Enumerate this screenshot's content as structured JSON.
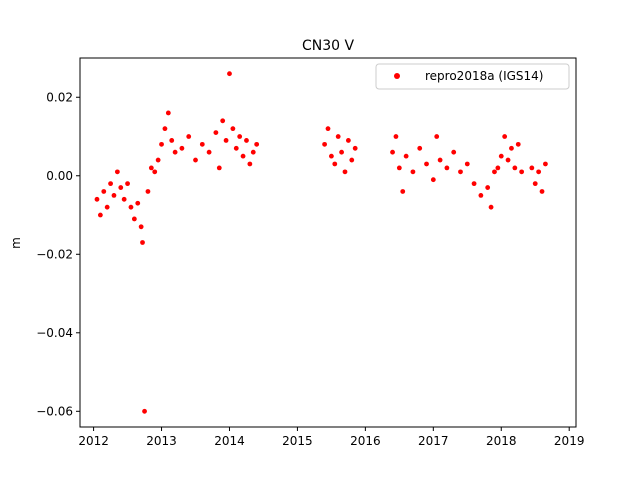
{
  "chart_data": {
    "type": "scatter",
    "title": "CN30 V",
    "xlabel": "",
    "ylabel": "m",
    "xlim": [
      2011.8,
      2019.1
    ],
    "ylim": [
      -0.064,
      0.03
    ],
    "xticks": [
      2012,
      2013,
      2014,
      2015,
      2016,
      2017,
      2018,
      2019
    ],
    "xtick_labels": [
      "2012",
      "2013",
      "2014",
      "2015",
      "2016",
      "2017",
      "2018",
      "2019"
    ],
    "yticks": [
      -0.06,
      -0.04,
      -0.02,
      0.0,
      0.02
    ],
    "ytick_labels": [
      "−0.06",
      "−0.04",
      "−0.02",
      "0.00",
      "0.02"
    ],
    "legend": {
      "location": "upper right",
      "entries": [
        "repro2018a (IGS14)"
      ]
    },
    "colors": {
      "series": "#ff0000"
    },
    "series": [
      {
        "name": "repro2018a (IGS14)",
        "marker": "circle",
        "points": [
          [
            2012.05,
            -0.006
          ],
          [
            2012.1,
            -0.01
          ],
          [
            2012.15,
            -0.004
          ],
          [
            2012.2,
            -0.008
          ],
          [
            2012.25,
            -0.002
          ],
          [
            2012.3,
            -0.005
          ],
          [
            2012.35,
            0.001
          ],
          [
            2012.4,
            -0.003
          ],
          [
            2012.45,
            -0.006
          ],
          [
            2012.5,
            -0.002
          ],
          [
            2012.55,
            -0.008
          ],
          [
            2012.6,
            -0.011
          ],
          [
            2012.65,
            -0.007
          ],
          [
            2012.7,
            -0.013
          ],
          [
            2012.72,
            -0.017
          ],
          [
            2012.75,
            -0.06
          ],
          [
            2012.8,
            -0.004
          ],
          [
            2012.85,
            0.002
          ],
          [
            2012.9,
            0.001
          ],
          [
            2012.95,
            0.004
          ],
          [
            2013.0,
            0.008
          ],
          [
            2013.05,
            0.012
          ],
          [
            2013.1,
            0.016
          ],
          [
            2013.15,
            0.009
          ],
          [
            2013.2,
            0.006
          ],
          [
            2013.3,
            0.007
          ],
          [
            2013.4,
            0.01
          ],
          [
            2013.5,
            0.004
          ],
          [
            2013.6,
            0.008
          ],
          [
            2013.7,
            0.006
          ],
          [
            2013.8,
            0.011
          ],
          [
            2013.85,
            0.002
          ],
          [
            2013.9,
            0.014
          ],
          [
            2013.95,
            0.009
          ],
          [
            2014.0,
            0.026
          ],
          [
            2014.05,
            0.012
          ],
          [
            2014.1,
            0.007
          ],
          [
            2014.15,
            0.01
          ],
          [
            2014.2,
            0.005
          ],
          [
            2014.25,
            0.009
          ],
          [
            2014.3,
            0.003
          ],
          [
            2014.35,
            0.006
          ],
          [
            2014.4,
            0.008
          ],
          [
            2015.4,
            0.008
          ],
          [
            2015.45,
            0.012
          ],
          [
            2015.5,
            0.005
          ],
          [
            2015.55,
            0.003
          ],
          [
            2015.6,
            0.01
          ],
          [
            2015.65,
            0.006
          ],
          [
            2015.7,
            0.001
          ],
          [
            2015.75,
            0.009
          ],
          [
            2015.8,
            0.004
          ],
          [
            2015.85,
            0.007
          ],
          [
            2016.4,
            0.006
          ],
          [
            2016.45,
            0.01
          ],
          [
            2016.5,
            0.002
          ],
          [
            2016.55,
            -0.004
          ],
          [
            2016.6,
            0.005
          ],
          [
            2016.7,
            0.001
          ],
          [
            2016.8,
            0.007
          ],
          [
            2016.9,
            0.003
          ],
          [
            2017.0,
            -0.001
          ],
          [
            2017.05,
            0.01
          ],
          [
            2017.1,
            0.004
          ],
          [
            2017.2,
            0.002
          ],
          [
            2017.3,
            0.006
          ],
          [
            2017.4,
            0.001
          ],
          [
            2017.5,
            0.003
          ],
          [
            2017.6,
            -0.002
          ],
          [
            2017.7,
            -0.005
          ],
          [
            2017.8,
            -0.003
          ],
          [
            2017.85,
            -0.008
          ],
          [
            2017.9,
            0.001
          ],
          [
            2017.95,
            0.002
          ],
          [
            2018.0,
            0.005
          ],
          [
            2018.05,
            0.01
          ],
          [
            2018.1,
            0.004
          ],
          [
            2018.15,
            0.007
          ],
          [
            2018.2,
            0.002
          ],
          [
            2018.25,
            0.008
          ],
          [
            2018.3,
            0.001
          ],
          [
            2018.45,
            0.002
          ],
          [
            2018.5,
            -0.002
          ],
          [
            2018.55,
            0.001
          ],
          [
            2018.6,
            -0.004
          ],
          [
            2018.65,
            0.003
          ]
        ]
      }
    ]
  }
}
